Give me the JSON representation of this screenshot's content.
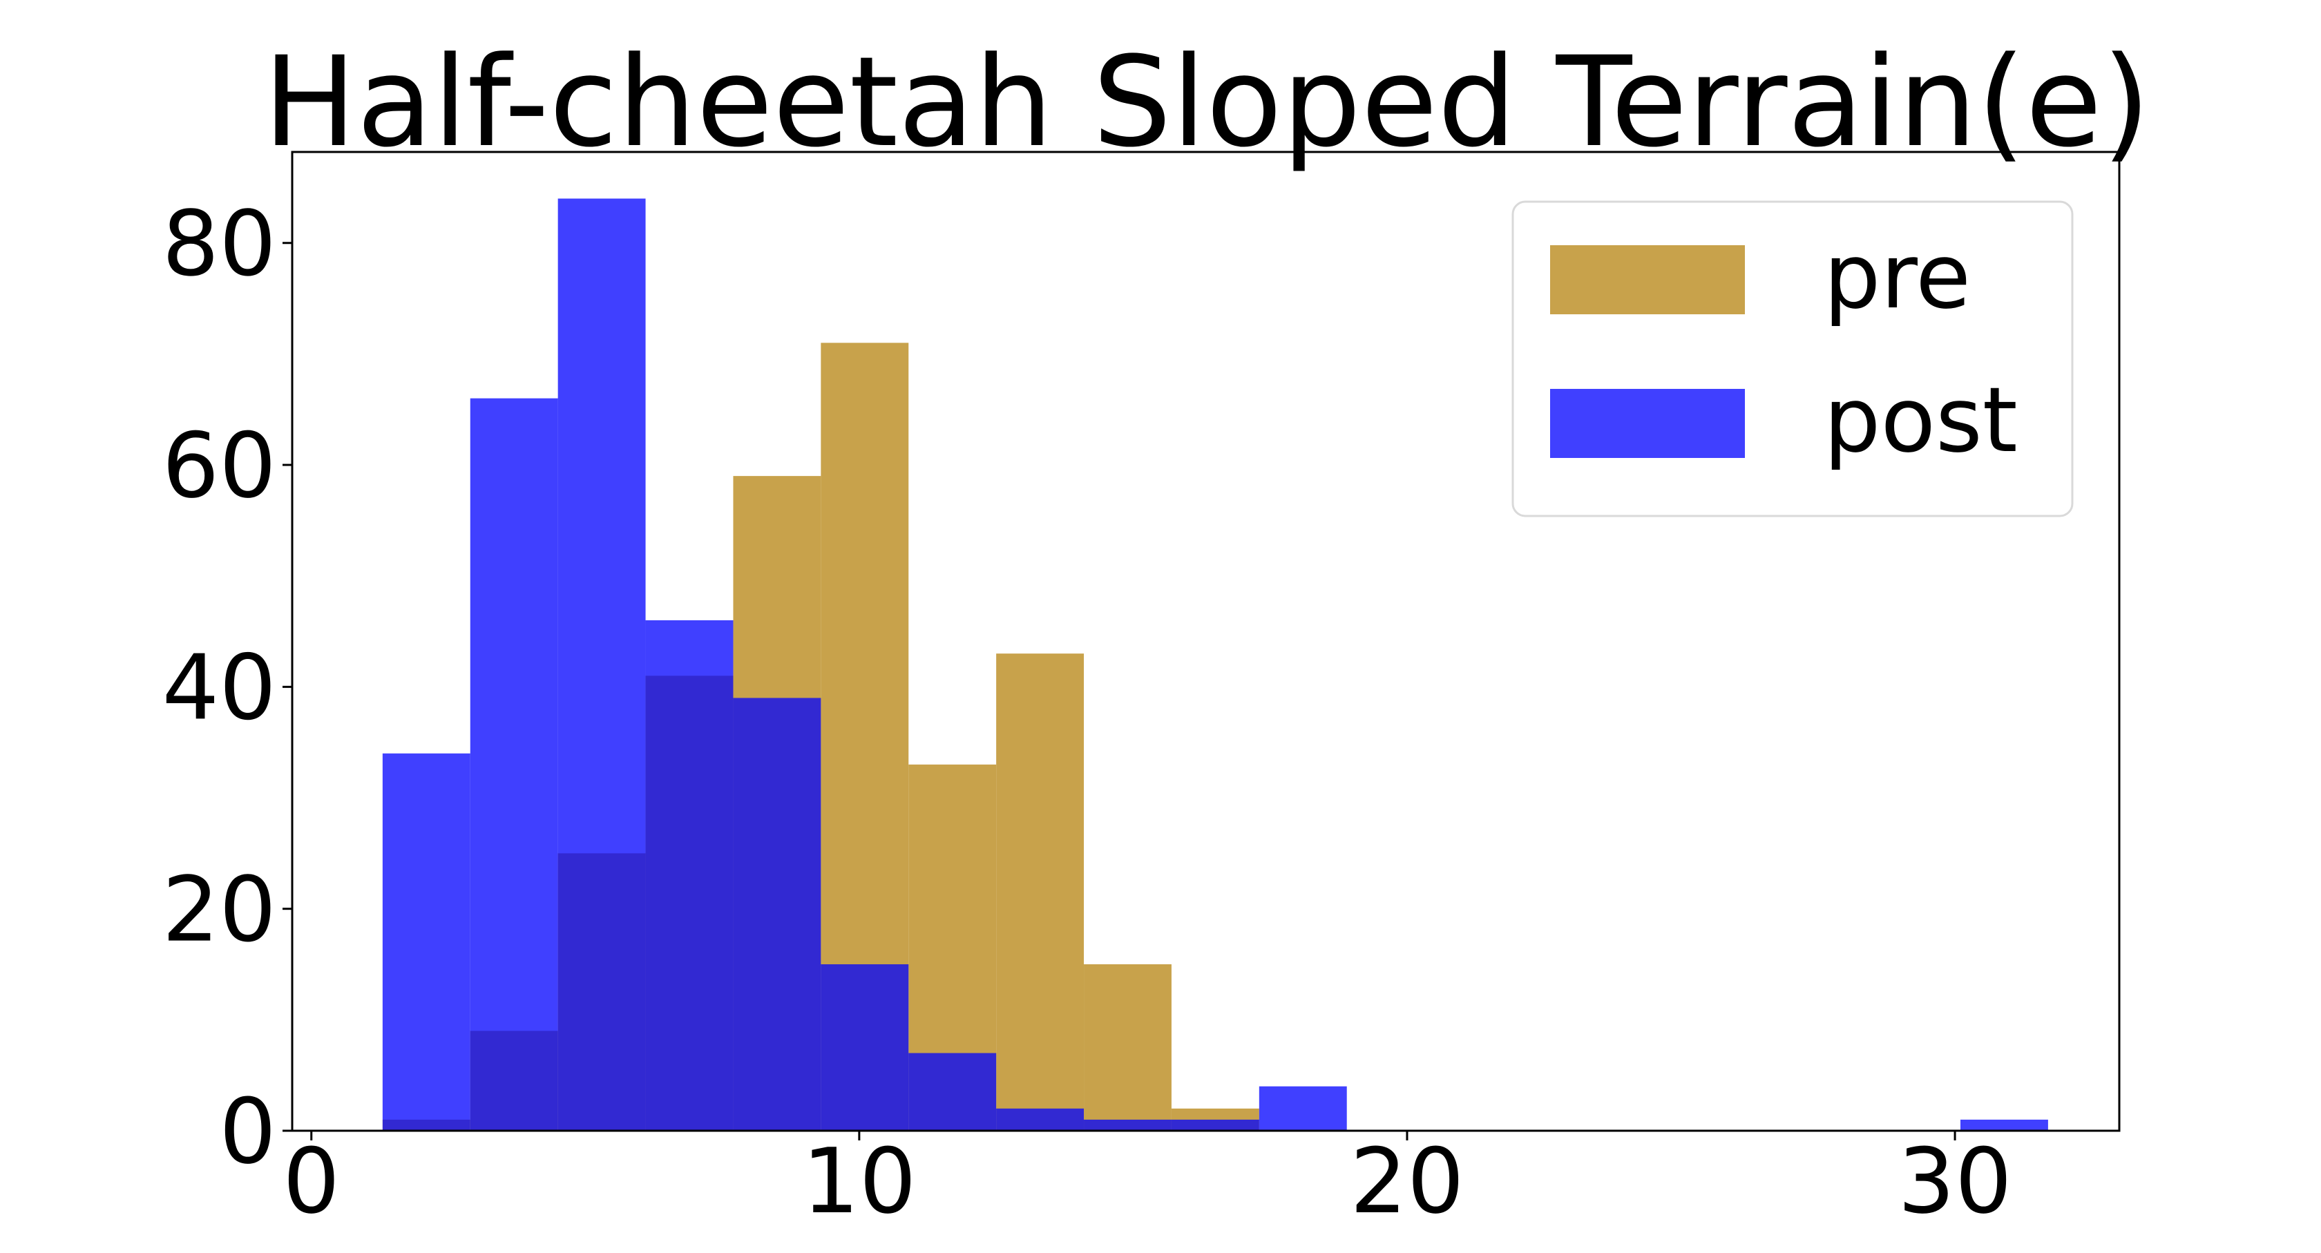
{
  "chart_data": {
    "type": "bar",
    "title": "Half-cheetah Sloped Terrain(e)",
    "xlabel": "",
    "ylabel": "",
    "xlim": [
      -0.35,
      33.0
    ],
    "ylim": [
      0,
      88.2
    ],
    "xticks": [
      0,
      10,
      20,
      30
    ],
    "yticks": [
      0,
      20,
      40,
      60,
      80
    ],
    "grid": false,
    "legend_position": "top-right",
    "series": [
      {
        "name": "pre",
        "color": "#c8a24b",
        "bins": [
          {
            "x0": 1.3,
            "x1": 2.9,
            "value": 1
          },
          {
            "x0": 2.9,
            "x1": 4.5,
            "value": 9
          },
          {
            "x0": 4.5,
            "x1": 6.1,
            "value": 25
          },
          {
            "x0": 6.1,
            "x1": 7.7,
            "value": 41
          },
          {
            "x0": 7.7,
            "x1": 9.3,
            "value": 59
          },
          {
            "x0": 9.3,
            "x1": 10.9,
            "value": 71
          },
          {
            "x0": 10.9,
            "x1": 12.5,
            "value": 33
          },
          {
            "x0": 12.5,
            "x1": 14.1,
            "value": 43
          },
          {
            "x0": 14.1,
            "x1": 15.7,
            "value": 15
          },
          {
            "x0": 15.7,
            "x1": 17.3,
            "value": 2
          }
        ]
      },
      {
        "name": "post",
        "color": "#0000ff",
        "opacity": 0.75,
        "bins": [
          {
            "x0": 1.3,
            "x1": 2.9,
            "value": 34
          },
          {
            "x0": 2.9,
            "x1": 4.5,
            "value": 66
          },
          {
            "x0": 4.5,
            "x1": 6.1,
            "value": 84
          },
          {
            "x0": 6.1,
            "x1": 7.7,
            "value": 46
          },
          {
            "x0": 7.7,
            "x1": 9.3,
            "value": 39
          },
          {
            "x0": 9.3,
            "x1": 10.9,
            "value": 15
          },
          {
            "x0": 10.9,
            "x1": 12.5,
            "value": 7
          },
          {
            "x0": 12.5,
            "x1": 14.1,
            "value": 2
          },
          {
            "x0": 14.1,
            "x1": 15.7,
            "value": 1
          },
          {
            "x0": 15.7,
            "x1": 17.3,
            "value": 1
          },
          {
            "x0": 17.3,
            "x1": 18.9,
            "value": 4
          },
          {
            "x0": 30.1,
            "x1": 31.7,
            "value": 1
          }
        ]
      }
    ]
  }
}
